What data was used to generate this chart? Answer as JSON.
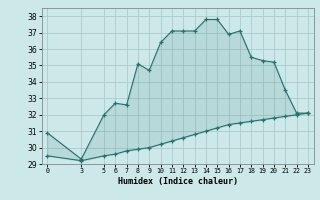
{
  "xlabel": "Humidex (Indice chaleur)",
  "background_color": "#cce8e8",
  "grid_color": "#aacccc",
  "line_color": "#267070",
  "fill_color": "#267070",
  "fill_alpha": 0.12,
  "x_ticks": [
    0,
    3,
    5,
    6,
    7,
    8,
    9,
    10,
    11,
    12,
    13,
    14,
    15,
    16,
    17,
    18,
    19,
    20,
    21,
    22,
    23
  ],
  "ylim": [
    29,
    38.5
  ],
  "xlim": [
    -0.5,
    23.5
  ],
  "yticks": [
    29,
    30,
    31,
    32,
    33,
    34,
    35,
    36,
    37,
    38
  ],
  "upper_x": [
    0,
    3,
    5,
    6,
    7,
    8,
    9,
    10,
    11,
    12,
    13,
    14,
    15,
    16,
    17,
    18,
    19,
    20,
    21,
    22,
    23
  ],
  "upper_y": [
    30.9,
    29.3,
    32.0,
    32.7,
    32.6,
    35.1,
    34.7,
    36.4,
    37.1,
    37.1,
    37.1,
    37.8,
    37.8,
    36.9,
    37.1,
    35.5,
    35.3,
    35.2,
    33.5,
    32.1,
    32.1
  ],
  "lower_x": [
    0,
    3,
    5,
    6,
    7,
    8,
    9,
    10,
    11,
    12,
    13,
    14,
    15,
    16,
    17,
    18,
    19,
    20,
    21,
    22,
    23
  ],
  "lower_y": [
    29.5,
    29.2,
    29.5,
    29.6,
    29.8,
    29.9,
    30.0,
    30.2,
    30.4,
    30.6,
    30.8,
    31.0,
    31.2,
    31.4,
    31.5,
    31.6,
    31.7,
    31.8,
    31.9,
    32.0,
    32.1
  ]
}
